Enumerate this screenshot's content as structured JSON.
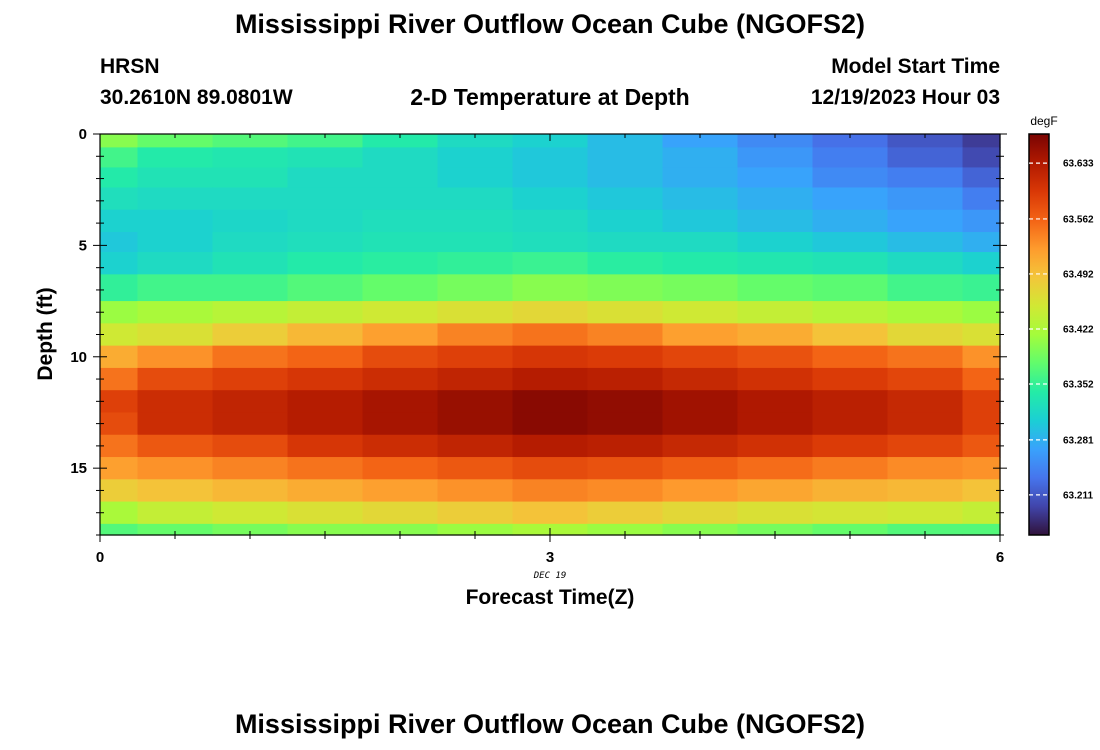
{
  "header": {
    "title": "Mississippi River Outflow Ocean Cube (NGOFS2)",
    "station_name": "HRSN",
    "coordinates": "30.2610N  89.0801W",
    "model_start_label": "Model Start Time",
    "model_start_value": "12/19/2023 Hour 03"
  },
  "footer": {
    "title": "Mississippi River Outflow Ocean Cube (NGOFS2)"
  },
  "chart_data": {
    "type": "heatmap",
    "title": "2-D Temperature at Depth",
    "xlabel": "Forecast Time(Z)",
    "ylabel": "Depth (ft)",
    "x_date_label": "DEC 19",
    "xlim": [
      0,
      6
    ],
    "ylim": [
      0,
      18
    ],
    "y_inverted": true,
    "x_ticks": [
      0,
      3,
      6
    ],
    "x_tick_labels": [
      "0",
      "3",
      "6"
    ],
    "y_ticks": [
      0,
      5,
      10,
      15
    ],
    "y_tick_labels": [
      "0",
      "5",
      "10",
      "15"
    ],
    "x_edges": [
      0,
      0.25,
      0.75,
      1.25,
      1.75,
      2.25,
      2.75,
      3.25,
      3.75,
      4.25,
      4.75,
      5.25,
      5.75,
      6
    ],
    "y_edges": [
      0,
      0.6,
      1.5,
      2.4,
      3.4,
      4.4,
      5.3,
      6.3,
      7.5,
      8.5,
      9.5,
      10.5,
      11.5,
      12.5,
      13.5,
      14.5,
      15.5,
      16.5,
      17.5,
      18
    ],
    "colorbar": {
      "unit": "degF",
      "tick_values": [
        63.633,
        63.562,
        63.492,
        63.422,
        63.352,
        63.281,
        63.211
      ],
      "tick_labels": [
        "63.633",
        "63.562",
        "63.492",
        "63.422",
        "63.352",
        "63.281",
        "63.211"
      ],
      "min": 63.16,
      "max": 63.67,
      "colormap_stops": [
        "#30123b",
        "#4145ab",
        "#4675ed",
        "#39a2fc",
        "#1bcfd4",
        "#24eca6",
        "#61fc6c",
        "#a4fc3b",
        "#d1e834",
        "#f3c63a",
        "#fe9b2d",
        "#f36315",
        "#d93806",
        "#b11901",
        "#7a0402"
      ]
    },
    "values": [
      [
        63.4,
        63.38,
        63.37,
        63.36,
        63.34,
        63.32,
        63.31,
        63.29,
        63.27,
        63.25,
        63.23,
        63.21,
        63.19
      ],
      [
        63.36,
        63.34,
        63.335,
        63.33,
        63.32,
        63.31,
        63.3,
        63.29,
        63.28,
        63.26,
        63.24,
        63.22,
        63.2
      ],
      [
        63.34,
        63.33,
        63.33,
        63.32,
        63.32,
        63.31,
        63.3,
        63.29,
        63.28,
        63.27,
        63.25,
        63.24,
        63.22
      ],
      [
        63.325,
        63.32,
        63.32,
        63.32,
        63.32,
        63.32,
        63.31,
        63.3,
        63.29,
        63.28,
        63.27,
        63.26,
        63.24
      ],
      [
        63.31,
        63.31,
        63.315,
        63.32,
        63.325,
        63.325,
        63.32,
        63.31,
        63.3,
        63.29,
        63.28,
        63.27,
        63.26
      ],
      [
        63.3,
        63.31,
        63.32,
        63.325,
        63.33,
        63.33,
        63.325,
        63.32,
        63.32,
        63.31,
        63.3,
        63.29,
        63.28
      ],
      [
        63.31,
        63.32,
        63.33,
        63.34,
        63.345,
        63.35,
        63.355,
        63.345,
        63.34,
        63.335,
        63.33,
        63.32,
        63.31
      ],
      [
        63.35,
        63.36,
        63.36,
        63.37,
        63.38,
        63.39,
        63.4,
        63.395,
        63.39,
        63.38,
        63.375,
        63.36,
        63.355
      ],
      [
        63.41,
        63.42,
        63.43,
        63.44,
        63.45,
        63.46,
        63.47,
        63.46,
        63.45,
        63.44,
        63.43,
        63.42,
        63.41
      ],
      [
        63.45,
        63.46,
        63.48,
        63.5,
        63.52,
        63.54,
        63.55,
        63.54,
        63.52,
        63.51,
        63.49,
        63.47,
        63.46
      ],
      [
        63.51,
        63.53,
        63.55,
        63.56,
        63.58,
        63.59,
        63.6,
        63.595,
        63.585,
        63.575,
        63.56,
        63.55,
        63.53
      ],
      [
        63.55,
        63.58,
        63.59,
        63.6,
        63.61,
        63.62,
        63.63,
        63.625,
        63.615,
        63.605,
        63.595,
        63.585,
        63.56
      ],
      [
        63.59,
        63.61,
        63.62,
        63.63,
        63.64,
        63.65,
        63.66,
        63.655,
        63.645,
        63.635,
        63.625,
        63.615,
        63.59
      ],
      [
        63.58,
        63.61,
        63.62,
        63.63,
        63.64,
        63.65,
        63.66,
        63.655,
        63.645,
        63.635,
        63.625,
        63.615,
        63.59
      ],
      [
        63.55,
        63.57,
        63.58,
        63.6,
        63.61,
        63.62,
        63.63,
        63.625,
        63.615,
        63.605,
        63.595,
        63.585,
        63.57
      ],
      [
        63.52,
        63.53,
        63.54,
        63.55,
        63.56,
        63.57,
        63.58,
        63.575,
        63.565,
        63.555,
        63.545,
        63.535,
        63.53
      ],
      [
        63.48,
        63.49,
        63.5,
        63.51,
        63.52,
        63.53,
        63.54,
        63.535,
        63.525,
        63.515,
        63.505,
        63.5,
        63.49
      ],
      [
        63.42,
        63.44,
        63.45,
        63.46,
        63.47,
        63.48,
        63.49,
        63.48,
        63.47,
        63.46,
        63.455,
        63.45,
        63.44
      ],
      [
        63.37,
        63.38,
        63.39,
        63.4,
        63.4,
        63.41,
        63.42,
        63.41,
        63.4,
        63.39,
        63.38,
        63.37,
        63.37
      ]
    ]
  }
}
